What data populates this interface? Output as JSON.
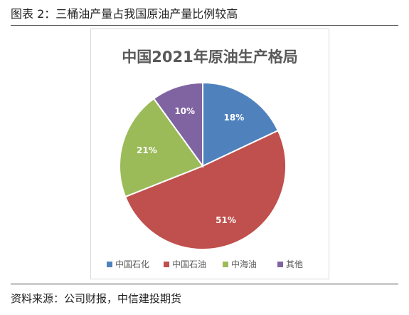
{
  "figure": {
    "caption": "图表 2：三桶油产量占我国原油产量比例较高",
    "source": "资料来源：公司财报，中信建投期货"
  },
  "chart_data": {
    "type": "pie",
    "title": "中国2021年原油生产格局",
    "slices": [
      {
        "label": "中国石化",
        "value": 18,
        "value_label": "18%",
        "color": "#4F81BD"
      },
      {
        "label": "中国石油",
        "value": 51,
        "value_label": "51%",
        "color": "#C0504D"
      },
      {
        "label": "中海油",
        "value": 21,
        "value_label": "21%",
        "color": "#9BBB59"
      },
      {
        "label": "其他",
        "value": 10,
        "value_label": "10%",
        "color": "#8064A2"
      }
    ],
    "legend_position": "bottom"
  }
}
